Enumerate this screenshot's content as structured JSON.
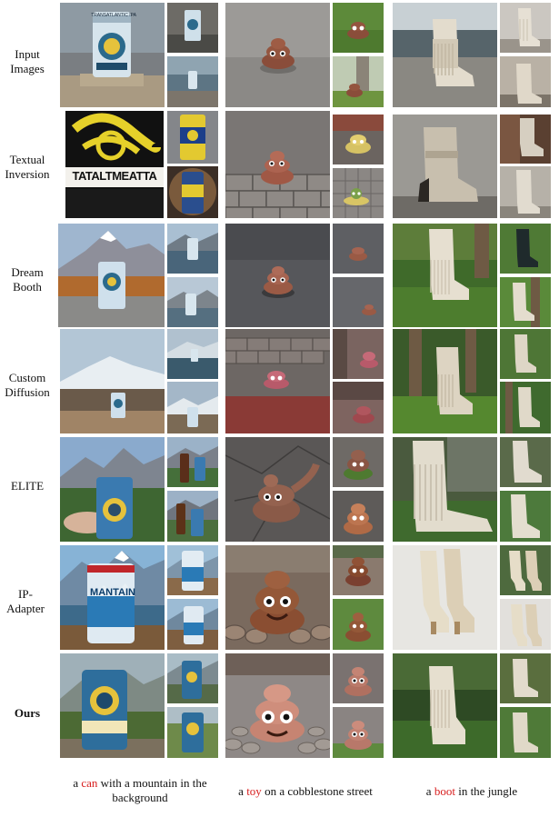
{
  "rows": [
    {
      "label": "Input Images",
      "bold": false
    },
    {
      "label": "Textual Inversion",
      "bold": false
    },
    {
      "label": "Dream Booth",
      "bold": false
    },
    {
      "label": "Custom Diffusion",
      "bold": false
    },
    {
      "label": "ELITE",
      "bold": false
    },
    {
      "label": "IP-Adapter",
      "bold": false
    },
    {
      "label": "Ours",
      "bold": true
    }
  ],
  "captions": [
    {
      "pre": "a ",
      "highlight": "can",
      "post": " with a mountain in the background"
    },
    {
      "pre": "a ",
      "highlight": "toy",
      "post": " on a cobblestone street"
    },
    {
      "pre": "a ",
      "highlight": "boot",
      "post": " in the jungle"
    }
  ],
  "image_text": {
    "input_can": "TRANSATLANTIC IPA",
    "textual_inversion_can": "TATALTMEATTA",
    "ip_adapter_can": "MANTAIN"
  },
  "colors": {
    "highlight": "#d81e1e"
  }
}
